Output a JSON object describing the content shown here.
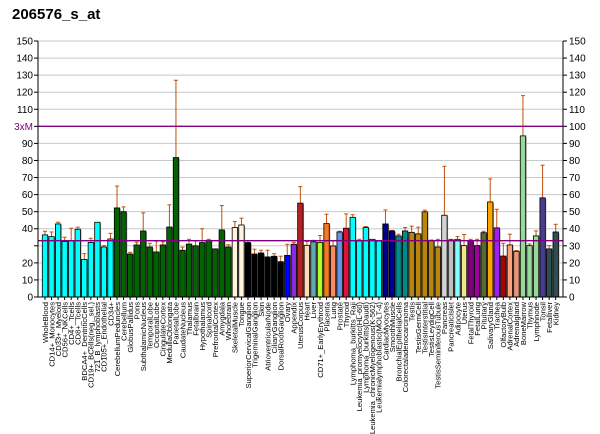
{
  "chart_data": {
    "type": "bar",
    "title": "206576_s_at",
    "xlabel": "",
    "ylabel": "",
    "ylim": [
      0,
      150
    ],
    "y_ticks": [
      0,
      10,
      20,
      30,
      40,
      50,
      60,
      70,
      80,
      90,
      100,
      110,
      120,
      130,
      140,
      150
    ],
    "grid": true,
    "reference_lines": [
      {
        "name": "3xM",
        "value": 100,
        "color": "#800080"
      },
      {
        "name": "Median",
        "value": 33,
        "color": "#800080"
      }
    ],
    "categories": [
      "WholeBlood",
      "CD14+_Monocytes",
      "CD33+_Myeloid",
      "CD56+_NKCells",
      "CD4+_Tcells",
      "CD8+_Tcells",
      "BDCA4+_DentriticCells",
      "CD19+_BCells(neg._sel.)",
      "721_B_lymphoblasts",
      "CD105+_Endothelial",
      "CD34+",
      "CerebellumPeduncles",
      "Cerebellum",
      "GlobusPallidus",
      "Pons",
      "SubthalamicNucleus",
      "TemporalLobe",
      "OccipitalLobe",
      "CingulateCortex",
      "MedullaOblongata",
      "ParietalLobe",
      "CaudateNucleus",
      "Thalamus",
      "Fetalbrain",
      "Hypothalamus",
      "Spinalcord",
      "PrefrontalCortex",
      "Amygdala",
      "Wholebrain",
      "SkeletalMuscle",
      "Tongue",
      "SuperiorCervicalGanglion",
      "TrigeminalGanglion",
      "Skin",
      "AtrioventricularNode",
      "CiliaryGanglion",
      "DorsalRootGanglion",
      "Ovary",
      "Appendix",
      "UterusCorpus",
      "Heart",
      "Liver",
      "CD71+_EarlyErythroid",
      "Placenta",
      "Lung",
      "Prostate",
      "Thyroid",
      "Lymphoma_burkitts_Raji",
      "Leukemia_promyelocytic(HL-60)",
      "Lymphoma_burkitts(Daudi)",
      "Leukemia_chronicMyelogenous(K-562)",
      "Leukemialymphoblastic(MOLT-4)",
      "CardiacMyocytes",
      "SmoothMuscle",
      "BronchialEpithelialCells",
      "Colorectaladenocarcinoma",
      "Testis",
      "TestisGermCell",
      "TestisInterstitial",
      "TestisLeydigCell",
      "TestisSeminiferousTubule",
      "Pancreas",
      "PancreaticIslet",
      "Adipocyte",
      "Uterus",
      "FetalThyroid",
      "FetalLung",
      "Pituitary",
      "SalivaryGland",
      "Trachea",
      "OlfactoryBulb",
      "AdrenalCortex",
      "Adrenalgland",
      "BoneMarrow",
      "Thymus",
      "Lymphnode",
      "Tonsil",
      "Fetalliver",
      "Kidney"
    ],
    "values": [
      36.4,
      35.4,
      42.8,
      32.5,
      32.9,
      39.7,
      22,
      32,
      43.8,
      29.3,
      34,
      52.2,
      50,
      25.2,
      30.5,
      38.7,
      29.3,
      26.4,
      30.5,
      41,
      81.7,
      27.4,
      31,
      30,
      31.9,
      33.2,
      28.2,
      39.3,
      29.3,
      40.7,
      42.2,
      31.9,
      25.2,
      25.8,
      23.5,
      23.9,
      20.7,
      24.4,
      30.9,
      55,
      30.3,
      32.3,
      32,
      43,
      29.9,
      38.1,
      40.3,
      46.7,
      32.8,
      40.7,
      33.8,
      32.8,
      42.8,
      38.7,
      35.8,
      38.7,
      37.9,
      37,
      49.9,
      33,
      29.3,
      47.9,
      33.4,
      33.8,
      30.1,
      32.8,
      30.1,
      37.7,
      55.7,
      40.5,
      24,
      30.5,
      26.8,
      94.4,
      30.1,
      35.8,
      58.1,
      28.2,
      38.1
    ],
    "errors": [
      38.5,
      38.1,
      43.8,
      35,
      40.3,
      40.9,
      25.4,
      34.4,
      43.8,
      30.1,
      37.3,
      65,
      52.8,
      26.2,
      32.1,
      49.3,
      31.5,
      32.7,
      32.3,
      54,
      127,
      29.2,
      33.8,
      32.8,
      40,
      33.8,
      28.2,
      53.6,
      30.6,
      44.2,
      46.2,
      33,
      28,
      27.4,
      27.4,
      25.4,
      23.9,
      30.9,
      32,
      64.7,
      32.5,
      33.2,
      36,
      48.5,
      32.8,
      38.5,
      48.7,
      48.2,
      33.8,
      41.3,
      33.8,
      32.8,
      51,
      39,
      36.8,
      40.7,
      41.5,
      40.9,
      50.9,
      33.4,
      33.8,
      76.6,
      33.8,
      35.4,
      36.6,
      33.8,
      33.8,
      38.5,
      69.2,
      51.4,
      31.5,
      36.8,
      27.2,
      118,
      31.1,
      38.7,
      77.2,
      30.1,
      42.6
    ],
    "colors": [
      "#00ffff",
      "#00ffff",
      "#00ffff",
      "#00ffff",
      "#00ffff",
      "#00ffff",
      "#00ffff",
      "#00ffff",
      "#00ffff",
      "#00ffff",
      "#00ffff",
      "#006400",
      "#006400",
      "#006400",
      "#006400",
      "#006400",
      "#006400",
      "#006400",
      "#006400",
      "#006400",
      "#006400",
      "#006400",
      "#006400",
      "#006400",
      "#006400",
      "#006400",
      "#006400",
      "#006400",
      "#006400",
      "#fff5dc",
      "#fff5dc",
      "#000000",
      "#000000",
      "#000000",
      "#000000",
      "#000000",
      "#000000",
      "#0000ff",
      "#8a2be2",
      "#b22222",
      "#ffdab9",
      "#5fa8b0",
      "#adff2f",
      "#f47920",
      "#fa8a60",
      "#6495ed",
      "#dc143c",
      "#00ffff",
      "#00ffff",
      "#00ffff",
      "#00ffff",
      "#00ffff",
      "#00008b",
      "#00008b",
      "#008b8b",
      "#008b8b",
      "#b8860b",
      "#b8860b",
      "#b8860b",
      "#b8860b",
      "#b8860b",
      "#d3d3d3",
      "#c0c0c0",
      "#80ffff",
      "#f0e68c",
      "#800080",
      "#9b009b",
      "#556b2f",
      "#ffa500",
      "#a020f0",
      "#b00000",
      "#ffa07a",
      "#e9967a",
      "#98d898",
      "#98d898",
      "#98d898",
      "#483d8b",
      "#2f4f4f",
      "#2f4f4f"
    ],
    "error_color": "#c0500a",
    "grid_color": "#c8c8c8"
  }
}
